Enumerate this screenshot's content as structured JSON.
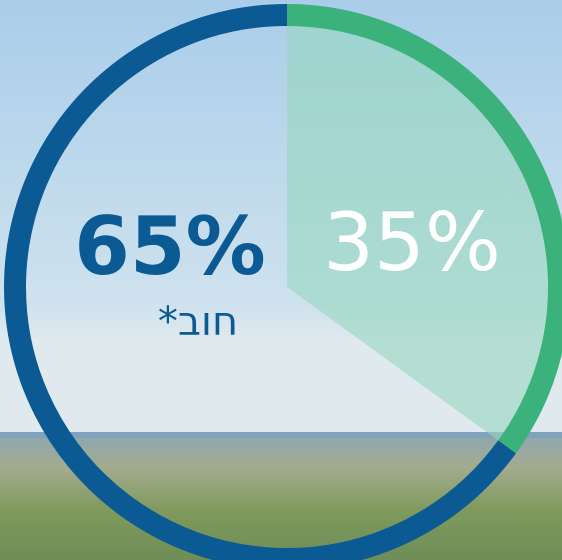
{
  "chart_data": {
    "type": "pie",
    "categories": [
      null,
      "חוב*"
    ],
    "values": [
      35,
      65
    ],
    "value_labels": [
      "35%",
      "65%"
    ],
    "colors": [
      "#3bb27c",
      "#0b5a94"
    ]
  }
}
